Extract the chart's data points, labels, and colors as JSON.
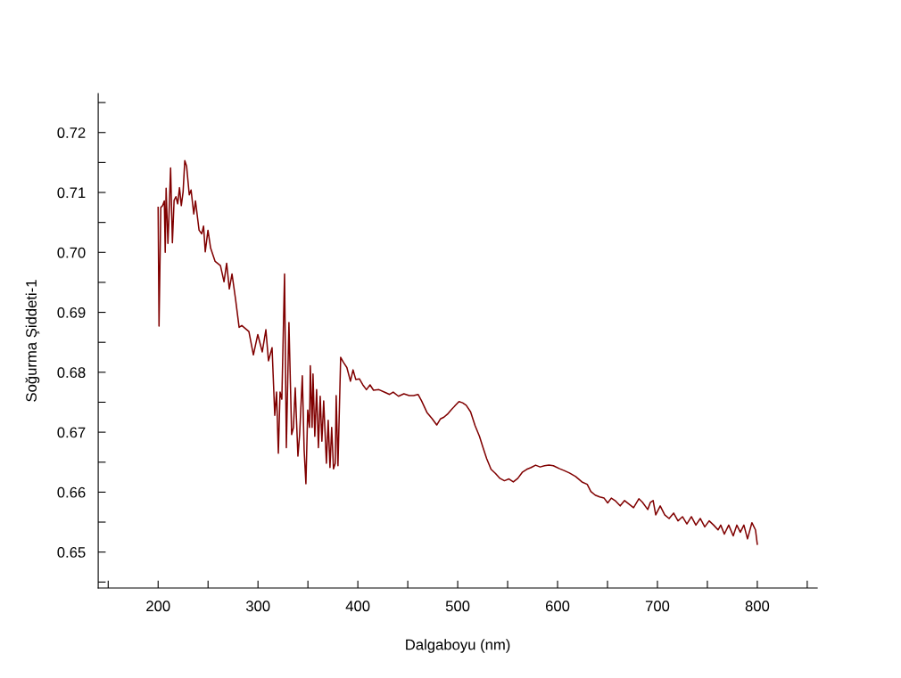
{
  "chart_data": {
    "type": "line",
    "xlabel": "Dalgaboyu (nm)",
    "ylabel": "Soğurma Şiddeti-1",
    "xlim": [
      140,
      860
    ],
    "ylim": [
      0.644,
      0.7265
    ],
    "xticks": [
      {
        "value": 150,
        "label": null
      },
      200,
      {
        "value": 250,
        "label": null
      },
      300,
      {
        "value": 350,
        "label": null
      },
      400,
      {
        "value": 450,
        "label": null
      },
      500,
      {
        "value": 550,
        "label": null
      },
      600,
      {
        "value": 650,
        "label": null
      },
      700,
      {
        "value": 750,
        "label": null
      },
      800,
      {
        "value": 850,
        "label": null
      }
    ],
    "yticks": [
      {
        "value": 0.645,
        "label": null
      },
      {
        "value": 0.65,
        "label": "0.65"
      },
      {
        "value": 0.655,
        "label": null
      },
      {
        "value": 0.66,
        "label": "0.66"
      },
      {
        "value": 0.665,
        "label": null
      },
      {
        "value": 0.67,
        "label": "0.67"
      },
      {
        "value": 0.675,
        "label": null
      },
      {
        "value": 0.68,
        "label": "0.68"
      },
      {
        "value": 0.685,
        "label": null
      },
      {
        "value": 0.69,
        "label": "0.69"
      },
      {
        "value": 0.695,
        "label": null
      },
      {
        "value": 0.7,
        "label": "0.70"
      },
      {
        "value": 0.705,
        "label": null
      },
      {
        "value": 0.71,
        "label": "0.71"
      },
      {
        "value": 0.715,
        "label": null
      },
      {
        "value": 0.72,
        "label": "0.72"
      },
      {
        "value": 0.725,
        "label": null
      }
    ],
    "grid": false,
    "legend": false,
    "series": [
      {
        "color": "#800000",
        "x": [
          200,
          200.9,
          202.7,
          204.5,
          206.2,
          207.1,
          208.0,
          209.8,
          210.7,
          212.5,
          214.3,
          216.0,
          217.8,
          219.6,
          221.4,
          223.2,
          225.0,
          226.7,
          228.5,
          231.2,
          233.0,
          235.7,
          237.4,
          241.0,
          243.7,
          245.5,
          247.2,
          249.9,
          252.6,
          257.1,
          262.4,
          266.0,
          268.6,
          271.3,
          274.0,
          277.6,
          281.1,
          283.8,
          290.9,
          295.4,
          299.8,
          304.3,
          307.9,
          310.5,
          314.1,
          316.8,
          318.6,
          320.4,
          322.1,
          323.9,
          326.6,
          328.4,
          331.0,
          333.7,
          335.5,
          337.3,
          340.0,
          341.7,
          344.4,
          346.2,
          348.0,
          349.8,
          351.6,
          352.4,
          354.2,
          355.1,
          356.9,
          358.7,
          360.5,
          362.3,
          364.0,
          365.8,
          368.5,
          370.3,
          372.1,
          373.8,
          375.6,
          377.4,
          378.3,
          380.1,
          382.8,
          385.4,
          389.0,
          392.6,
          395.2,
          397.9,
          401.5,
          405.0,
          408.6,
          412.2,
          415.7,
          421.1,
          426.4,
          431.8,
          435.4,
          440.7,
          446.1,
          451.4,
          455.9,
          460.3,
          463.9,
          469.2,
          474.6,
          479.0,
          482.6,
          486.2,
          489.7,
          493.3,
          497.8,
          501.3,
          504.9,
          508.5,
          512.9,
          517.4,
          521.8,
          525.4,
          529.0,
          533.4,
          537.9,
          542.3,
          546.8,
          551.3,
          555.7,
          560.2,
          564.6,
          569.1,
          573.5,
          578.0,
          582.5,
          586.9,
          591.4,
          595.8,
          602.1,
          606.5,
          611.9,
          618.1,
          624.4,
          629.7,
          633.3,
          637.7,
          642.2,
          646.6,
          650.2,
          653.8,
          658.2,
          662.7,
          667.1,
          671.6,
          676.1,
          681.4,
          685.0,
          690.3,
          693.0,
          695.7,
          698.3,
          702.8,
          707.3,
          711.7,
          716.2,
          720.6,
          725.1,
          729.5,
          734.0,
          738.5,
          742.9,
          747.4,
          751.8,
          756.3,
          760.7,
          763.4,
          767.0,
          771.4,
          775.9,
          779.5,
          783.0,
          786.6,
          790.2,
          794.6,
          798.2,
          800.0
        ],
        "values": [
          0.7075,
          0.6877,
          0.7075,
          0.7078,
          0.7086,
          0.7,
          0.7107,
          0.7015,
          0.7052,
          0.7141,
          0.7016,
          0.7087,
          0.7093,
          0.7081,
          0.7108,
          0.7078,
          0.7101,
          0.7153,
          0.7144,
          0.7096,
          0.7104,
          0.7064,
          0.7086,
          0.7037,
          0.7031,
          0.7044,
          0.7001,
          0.7037,
          0.7007,
          0.6985,
          0.6978,
          0.6951,
          0.6982,
          0.6939,
          0.6964,
          0.6921,
          0.6875,
          0.6878,
          0.6868,
          0.6829,
          0.6863,
          0.6834,
          0.6871,
          0.6819,
          0.6841,
          0.6728,
          0.6767,
          0.6665,
          0.6767,
          0.6755,
          0.6964,
          0.6674,
          0.6883,
          0.6696,
          0.6708,
          0.6774,
          0.666,
          0.6696,
          0.6794,
          0.6671,
          0.6614,
          0.6737,
          0.6708,
          0.6811,
          0.6708,
          0.6797,
          0.6693,
          0.6771,
          0.6674,
          0.676,
          0.6685,
          0.6752,
          0.6648,
          0.672,
          0.6641,
          0.6708,
          0.6639,
          0.6648,
          0.6761,
          0.6644,
          0.6825,
          0.6817,
          0.6808,
          0.6785,
          0.6804,
          0.6788,
          0.6789,
          0.6779,
          0.6771,
          0.6779,
          0.677,
          0.6771,
          0.6767,
          0.6763,
          0.6767,
          0.676,
          0.6764,
          0.6761,
          0.6761,
          0.6763,
          0.6752,
          0.6733,
          0.6722,
          0.6712,
          0.6722,
          0.6725,
          0.673,
          0.6737,
          0.6745,
          0.6751,
          0.6749,
          0.6745,
          0.6734,
          0.6711,
          0.6693,
          0.6674,
          0.6656,
          0.6638,
          0.6631,
          0.6623,
          0.6619,
          0.6622,
          0.6617,
          0.6623,
          0.6633,
          0.6638,
          0.6641,
          0.6645,
          0.6642,
          0.6644,
          0.6645,
          0.6644,
          0.6639,
          0.6636,
          0.6632,
          0.6626,
          0.6617,
          0.6613,
          0.6601,
          0.6595,
          0.6592,
          0.659,
          0.6582,
          0.659,
          0.6585,
          0.6577,
          0.6586,
          0.658,
          0.6574,
          0.6589,
          0.6583,
          0.6571,
          0.6583,
          0.6586,
          0.6562,
          0.6577,
          0.6562,
          0.6556,
          0.6565,
          0.6552,
          0.6559,
          0.6547,
          0.6559,
          0.6545,
          0.6556,
          0.6542,
          0.6552,
          0.6545,
          0.6537,
          0.6545,
          0.653,
          0.6545,
          0.6527,
          0.6545,
          0.6533,
          0.6545,
          0.6522,
          0.6549,
          0.6537,
          0.6513
        ]
      }
    ]
  }
}
